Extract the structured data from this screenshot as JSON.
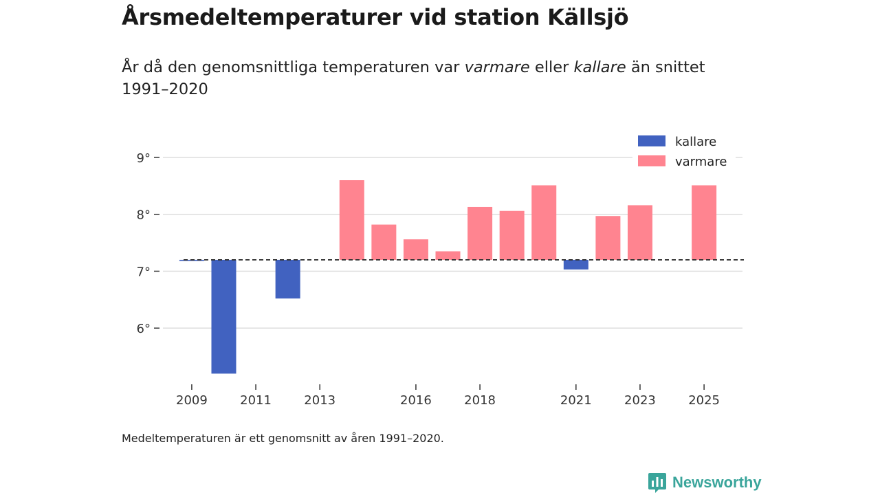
{
  "title": "Årsmedeltemperaturer vid station Källsjö",
  "subtitle": {
    "part1": "År då den genomsnittliga temperaturen var ",
    "em1": "varmare",
    "part2": " eller ",
    "em2": "kallare",
    "part3": " än snittet 1991–2020"
  },
  "note": "Medeltemperaturen är ett genomsnitt av åren 1991–2020.",
  "brand": {
    "name": "Newsworthy",
    "icon": "newsworthy-logo-icon"
  },
  "colors": {
    "colder": "#4162c0",
    "warmer": "#ff8490",
    "grid": "#dddddd",
    "baseline": "#333333"
  },
  "chart_data": {
    "type": "bar",
    "baseline": 7.2,
    "ylim": [
      5.0,
      9.35
    ],
    "yticks": [
      6,
      7,
      8,
      9
    ],
    "ytick_suffix": "°",
    "xlim": [
      2008.1,
      2026.2
    ],
    "xticks": [
      2009,
      2011,
      2013,
      2016,
      2018,
      2021,
      2023,
      2025
    ],
    "legend": [
      {
        "key": "colder",
        "label": "kallare"
      },
      {
        "key": "warmer",
        "label": "varmare"
      }
    ],
    "legend_position": "top-right",
    "points": [
      {
        "year": 2009,
        "value": 7.18
      },
      {
        "year": 2010,
        "value": 5.2
      },
      {
        "year": 2012,
        "value": 6.52
      },
      {
        "year": 2014,
        "value": 8.6
      },
      {
        "year": 2015,
        "value": 7.82
      },
      {
        "year": 2016,
        "value": 7.56
      },
      {
        "year": 2017,
        "value": 7.35
      },
      {
        "year": 2018,
        "value": 8.13
      },
      {
        "year": 2019,
        "value": 8.06
      },
      {
        "year": 2020,
        "value": 8.51
      },
      {
        "year": 2021,
        "value": 7.03
      },
      {
        "year": 2022,
        "value": 7.97
      },
      {
        "year": 2023,
        "value": 8.16
      },
      {
        "year": 2025,
        "value": 8.51
      }
    ],
    "xlabel": "",
    "ylabel": ""
  }
}
